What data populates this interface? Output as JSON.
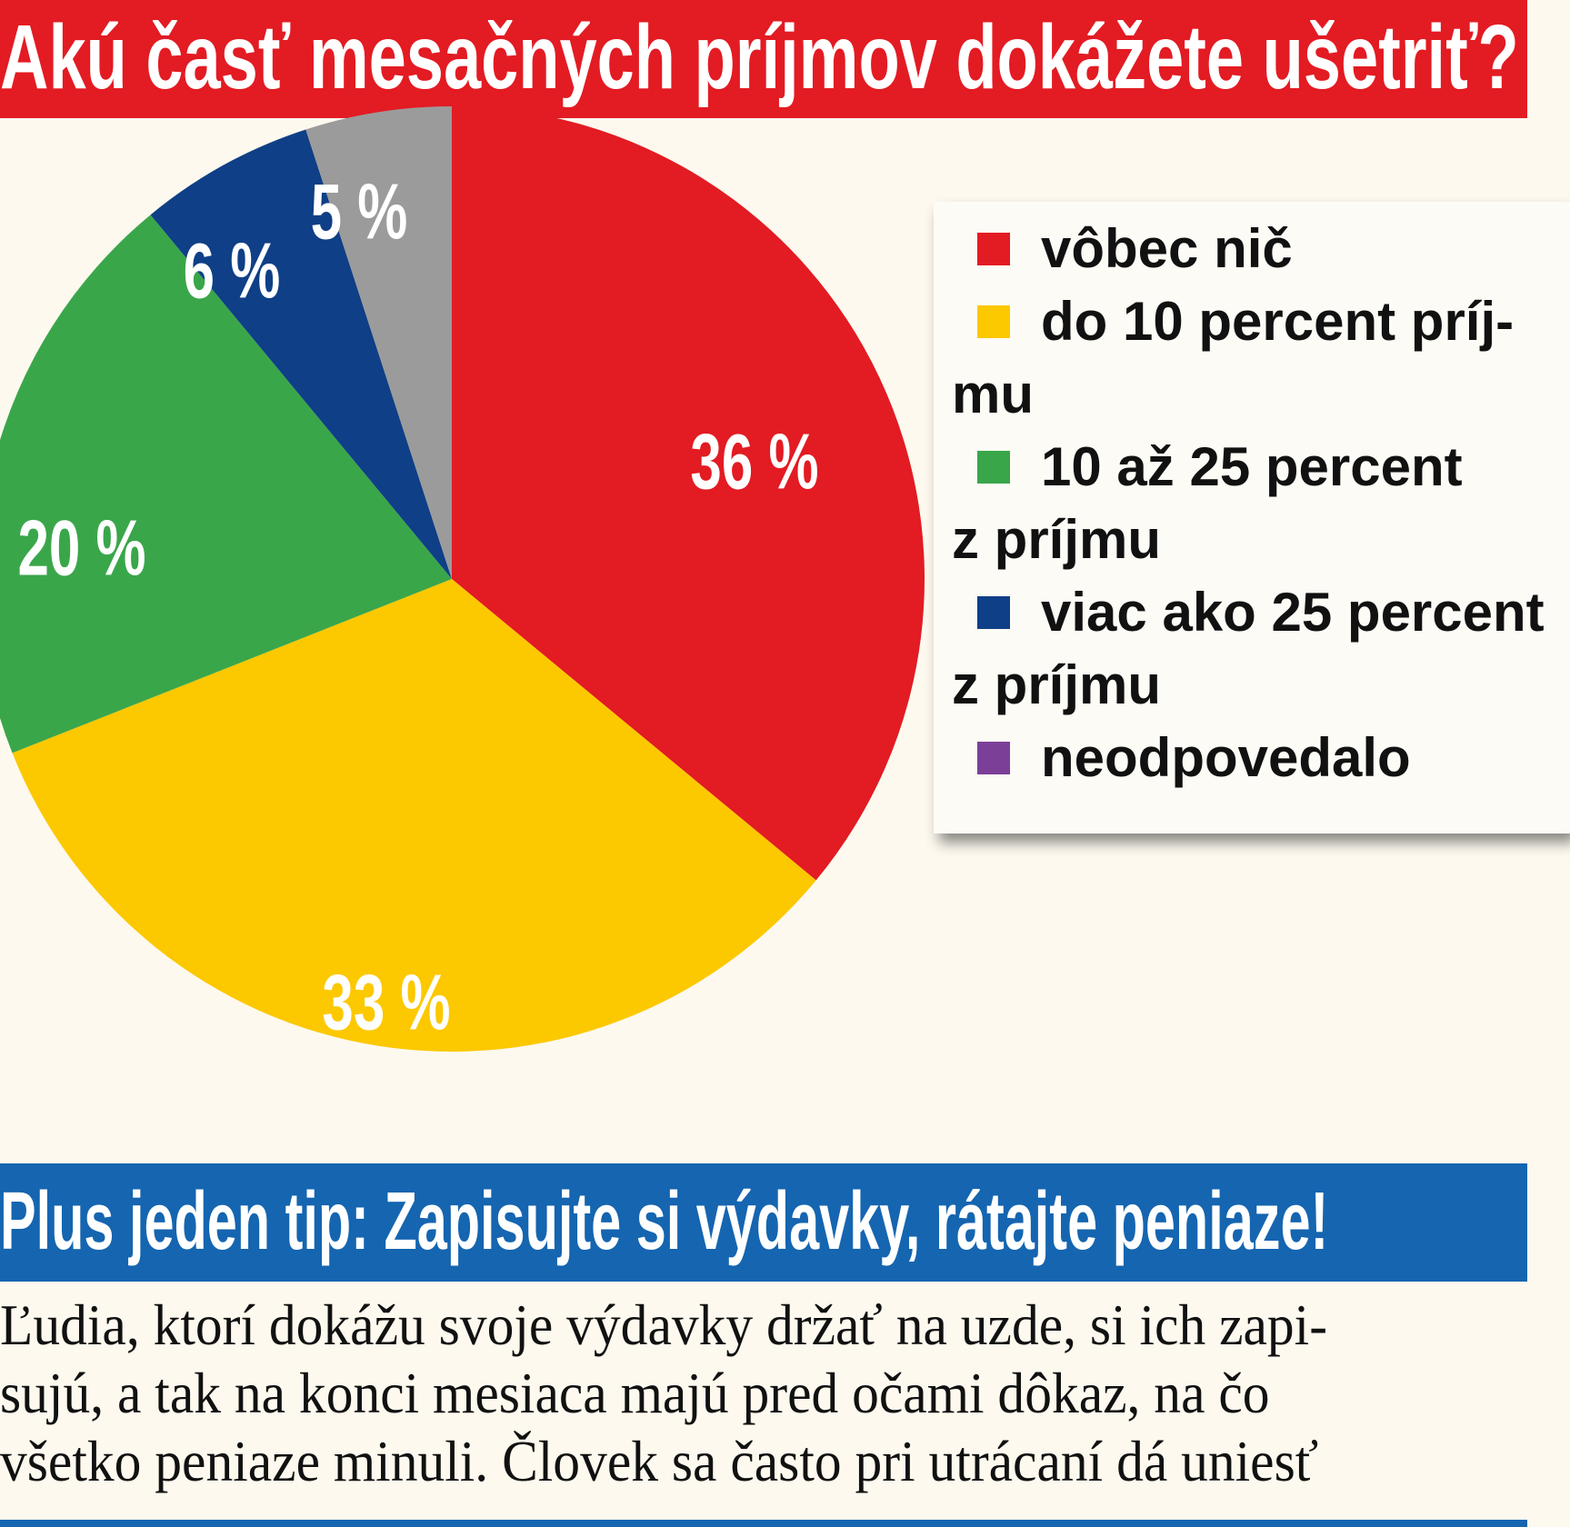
{
  "header": {
    "title": "Akú časť mesačných príjmov dokážete ušetriť?"
  },
  "chart_data": {
    "type": "pie",
    "title": "Akú časť mesačných príjmov dokážete ušetriť?",
    "slices": [
      {
        "label": "vôbec nič",
        "value": 36,
        "display": "36 %",
        "color": "#e31b23"
      },
      {
        "label": "do 10 percent príj-mu",
        "value": 33,
        "display": "33 %",
        "color": "#fcc800"
      },
      {
        "label": "10 až 25 percent z príjmu",
        "value": 20,
        "display": "20 %",
        "color": "#3aa64a"
      },
      {
        "label": "viac ako 25 percent z príjmu",
        "value": 6,
        "display": "6 %",
        "color": "#0f3f86"
      },
      {
        "label": "neodpovedalo",
        "value": 5,
        "display": "5 %",
        "color": "#9b9b9b"
      }
    ]
  },
  "legend": {
    "items": [
      {
        "lines": [
          "vôbec nič"
        ],
        "color": "#e31b23"
      },
      {
        "lines": [
          "do 10 percent príj-",
          "mu"
        ],
        "color": "#fcc800"
      },
      {
        "lines": [
          "10  až  25  percent",
          "z príjmu"
        ],
        "color": "#3aa64a"
      },
      {
        "lines": [
          "viac ako 25 percent",
          "z príjmu"
        ],
        "color": "#0f3f86"
      },
      {
        "lines": [
          "neodpovedalo"
        ],
        "color": "#7b3f98"
      }
    ]
  },
  "tip": {
    "title": "Plus jeden tip: Zapisujte si výdavky, rátajte peniaze!"
  },
  "article": {
    "lines": [
      "Ľudia, ktorí dokážu svoje výdavky držať na uzde,  si ich zapi-",
      "sujú, a tak na konci mesiaca majú pred očami dôkaz, na čo",
      "všetko peniaze minuli. Človek sa často pri utrácaní dá uniesť"
    ]
  }
}
